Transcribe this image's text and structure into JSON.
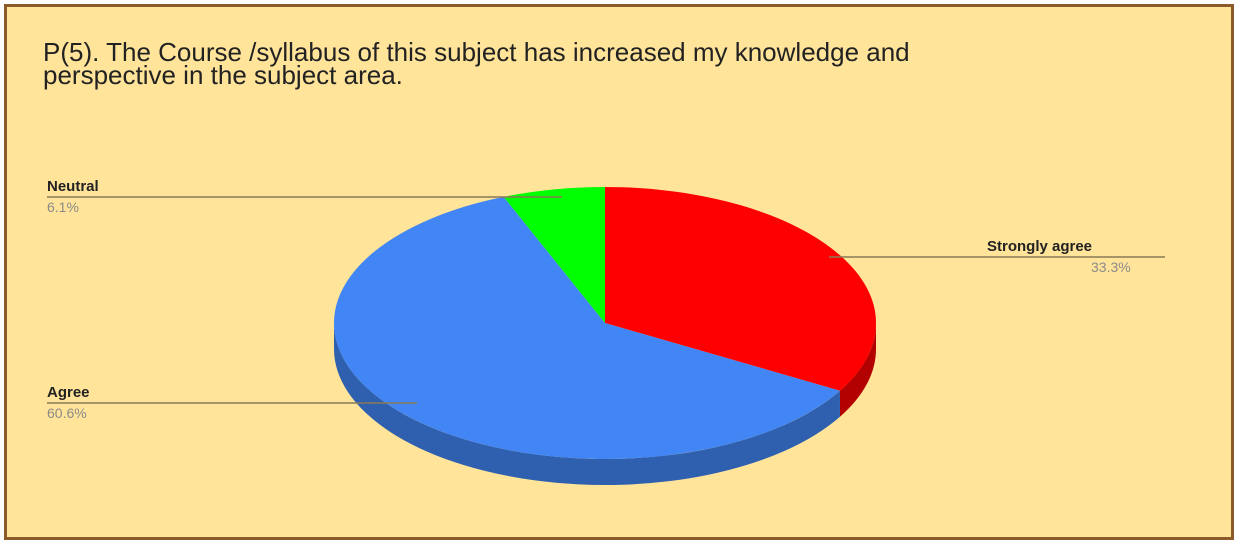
{
  "chart_data": {
    "type": "pie",
    "title": "P(5). The Course /syllabus of this subject has increased my knowledge and\nperspective in the subject area.",
    "categories": [
      "Strongly agree",
      "Agree",
      "Neutral"
    ],
    "values": [
      33.3,
      60.6,
      6.1
    ],
    "value_labels": [
      "33.3%",
      "60.6%",
      "6.1%"
    ],
    "colors": [
      "#ff0000",
      "#4285f4",
      "#00ff00"
    ],
    "side_colors": [
      "#b30000",
      "#2f5faf",
      "#00b300"
    ],
    "style": "3d",
    "legend": "none"
  },
  "frame": {
    "background": "#ffe49a",
    "border": "#8a5a2b"
  }
}
